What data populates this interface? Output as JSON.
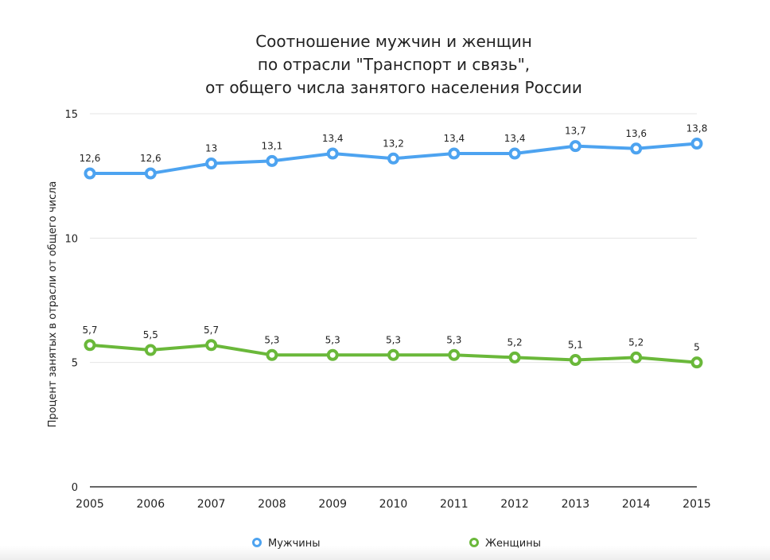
{
  "chart_data": {
    "type": "line",
    "title_lines": [
      "Соотношение мужчин и женщин",
      "по отрасли \"Транспорт и связь\",",
      "от общего числа занятого населения России"
    ],
    "xlabel": "",
    "ylabel": "Процент занятых в отрасли от общего числа",
    "categories": [
      "2005",
      "2006",
      "2007",
      "2008",
      "2009",
      "2010",
      "2011",
      "2012",
      "2013",
      "2014",
      "2015"
    ],
    "ylim": [
      0,
      15
    ],
    "yticks": [
      "0",
      "5",
      "10",
      "15"
    ],
    "grid": true,
    "legend_position": "bottom",
    "series": [
      {
        "name": "Мужчины",
        "color": "#4da3f0",
        "values": [
          12.6,
          12.6,
          13,
          13.1,
          13.4,
          13.2,
          13.4,
          13.4,
          13.7,
          13.6,
          13.8
        ],
        "labels": [
          "12,6",
          "12,6",
          "13",
          "13,1",
          "13,4",
          "13,2",
          "13,4",
          "13,4",
          "13,7",
          "13,6",
          "13,8"
        ]
      },
      {
        "name": "Женщины",
        "color": "#6ab83a",
        "values": [
          5.7,
          5.5,
          5.7,
          5.3,
          5.3,
          5.3,
          5.3,
          5.2,
          5.1,
          5.2,
          5
        ],
        "labels": [
          "5,7",
          "5,5",
          "5,7",
          "5,3",
          "5,3",
          "5,3",
          "5,3",
          "5,2",
          "5,1",
          "5,2",
          "5"
        ]
      }
    ]
  }
}
